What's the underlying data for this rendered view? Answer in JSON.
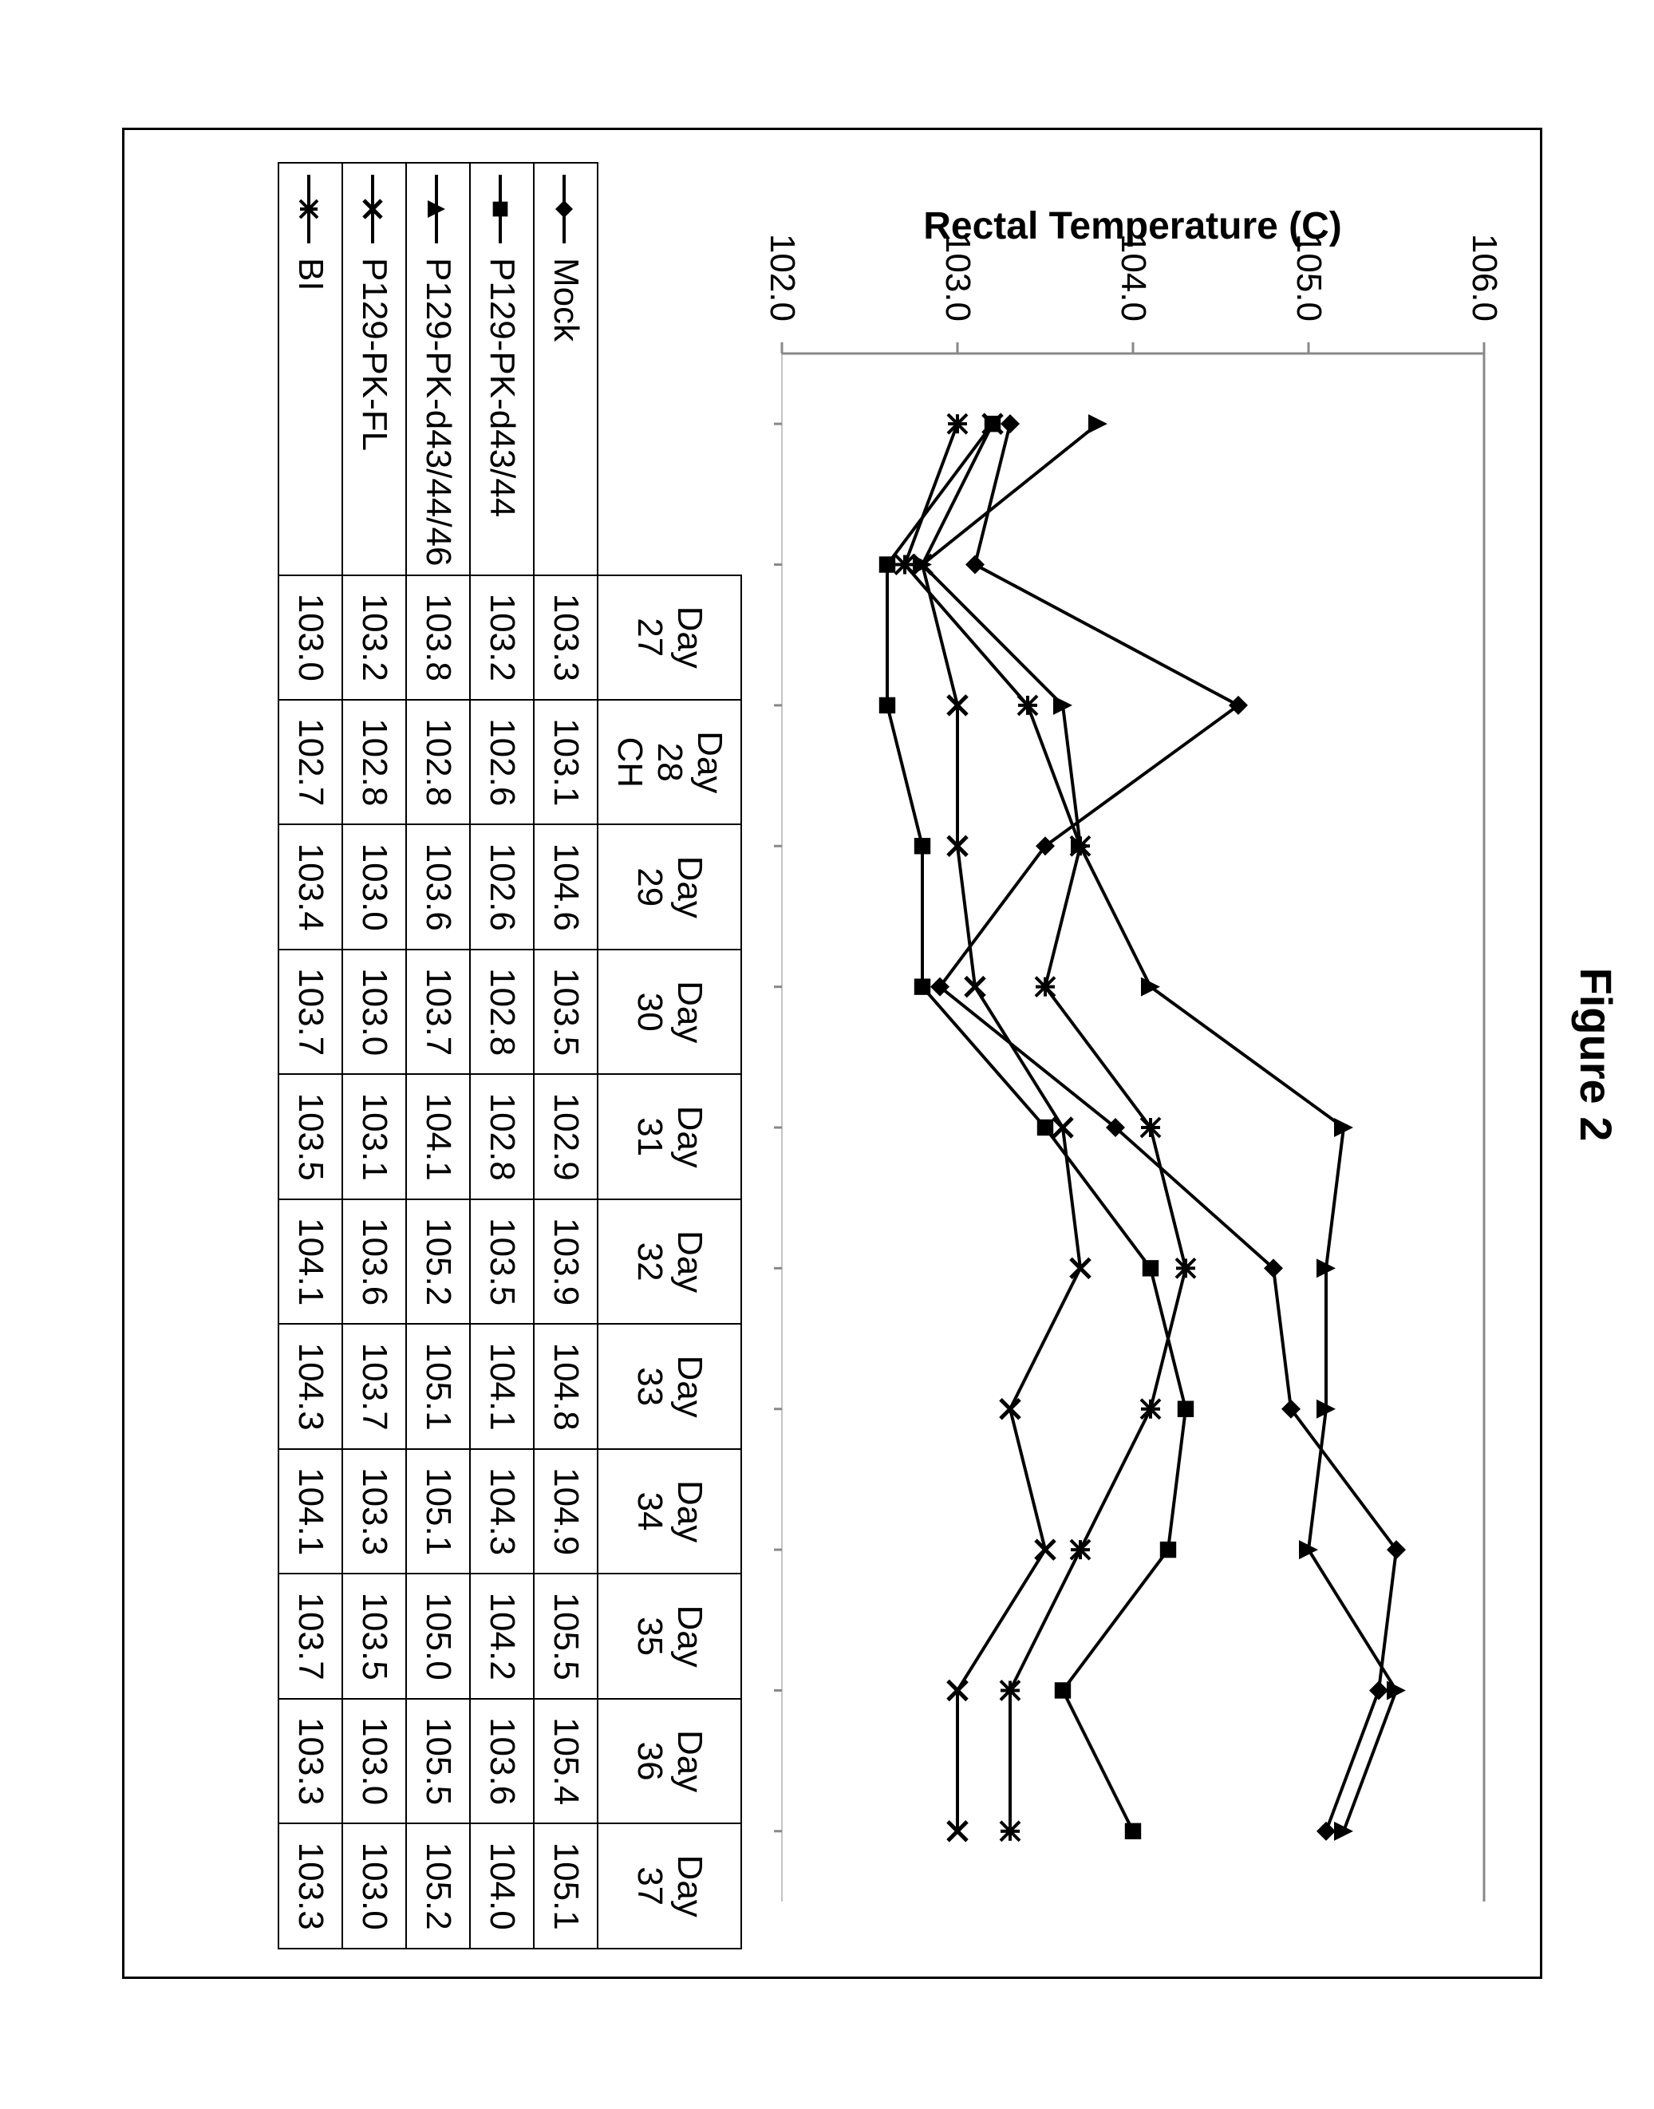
{
  "figure": {
    "title": "Figure 2",
    "y_axis_label": "Rectal Temperature (C)",
    "ylim": [
      102.0,
      106.0
    ],
    "yticks": [
      102.0,
      103.0,
      104.0,
      105.0,
      106.0
    ],
    "ytick_labels": [
      "102.0",
      "103.0",
      "104.0",
      "105.0",
      "106.0"
    ],
    "x_categories": [
      "Day 27",
      "Day 28 CH",
      "Day 29",
      "Day 30",
      "Day 31",
      "Day 32",
      "Day 33",
      "Day 34",
      "Day 35",
      "Day 36",
      "Day 37"
    ],
    "background_color": "#ffffff",
    "axis_color": "#888888",
    "series_color": "#000000",
    "line_width": 4,
    "marker_size": 24,
    "font_size_axis": 44,
    "font_size_title": 56,
    "series": [
      {
        "name": "Mock",
        "marker": "diamond",
        "values": [
          103.3,
          103.1,
          104.6,
          103.5,
          102.9,
          103.9,
          104.8,
          104.9,
          105.5,
          105.4,
          105.1
        ]
      },
      {
        "name": "P129-PK-d43/44",
        "marker": "square",
        "values": [
          103.2,
          102.6,
          102.6,
          102.8,
          102.8,
          103.5,
          104.1,
          104.3,
          104.2,
          103.6,
          104.0
        ]
      },
      {
        "name": "P129-PK-d43/44/46",
        "marker": "triangle",
        "values": [
          103.8,
          102.8,
          103.6,
          103.7,
          104.1,
          105.2,
          105.1,
          105.1,
          105.0,
          105.5,
          105.2
        ]
      },
      {
        "name": "P129-PK-FL",
        "marker": "x",
        "values": [
          103.2,
          102.8,
          103.0,
          103.0,
          103.1,
          103.6,
          103.7,
          103.3,
          103.5,
          103.0,
          103.0
        ]
      },
      {
        "name": "BI",
        "marker": "asterisk",
        "values": [
          103.0,
          102.7,
          103.4,
          103.7,
          103.5,
          104.1,
          104.3,
          104.1,
          103.7,
          103.3,
          103.3
        ]
      }
    ]
  }
}
